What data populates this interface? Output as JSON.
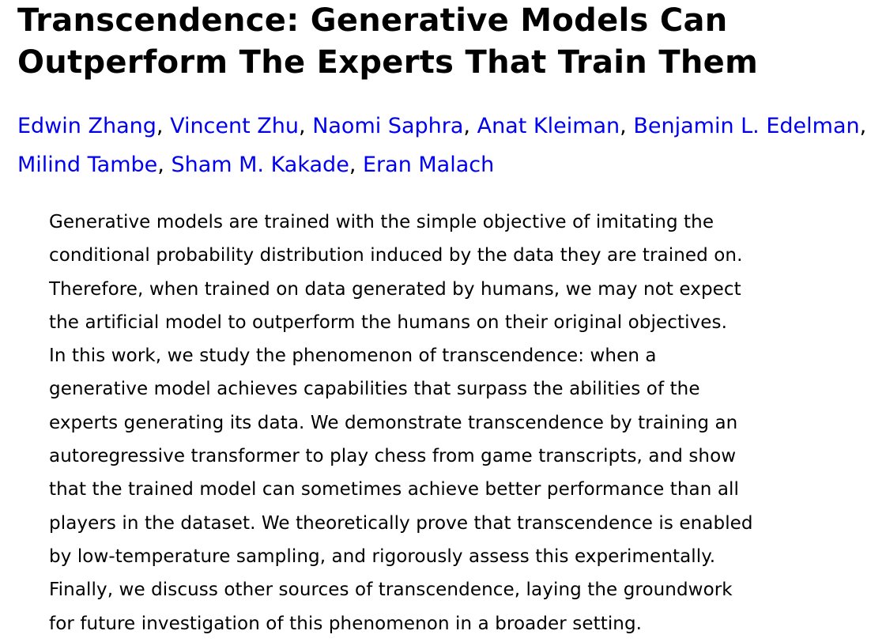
{
  "paper": {
    "title_line_1": "Transcendence: Generative Models Can",
    "title_line_2": "Outperform The Experts That Train Them",
    "authors": [
      "Edwin Zhang",
      "Vincent Zhu",
      "Naomi Saphra",
      "Anat Kleiman",
      "Benjamin L. Edelman",
      "Milind Tambe",
      "Sham M. Kakade",
      "Eran Malach"
    ],
    "author_separator": ", ",
    "author_link_color": "#0000ee",
    "abstract_lines": [
      "Generative models are trained with the simple objective of imitating the",
      "conditional probability distribution induced by the data they are trained on.",
      "Therefore, when trained on data generated by humans, we may not expect",
      "the artificial model to outperform the humans on their original objectives.",
      "In this work, we study the phenomenon of transcendence: when a",
      "generative model achieves capabilities that surpass the abilities of the",
      "experts generating its data. We demonstrate transcendence by training an",
      "autoregressive transformer to play chess from game transcripts, and show",
      "that the trained model can sometimes achieve better performance than all",
      "players in the dataset. We theoretically prove that transcendence is enabled",
      "by low-temperature sampling, and rigorously assess this experimentally.",
      "Finally, we discuss other sources of transcendence, laying the groundwork",
      "for future investigation of this phenomenon in a broader setting."
    ]
  }
}
